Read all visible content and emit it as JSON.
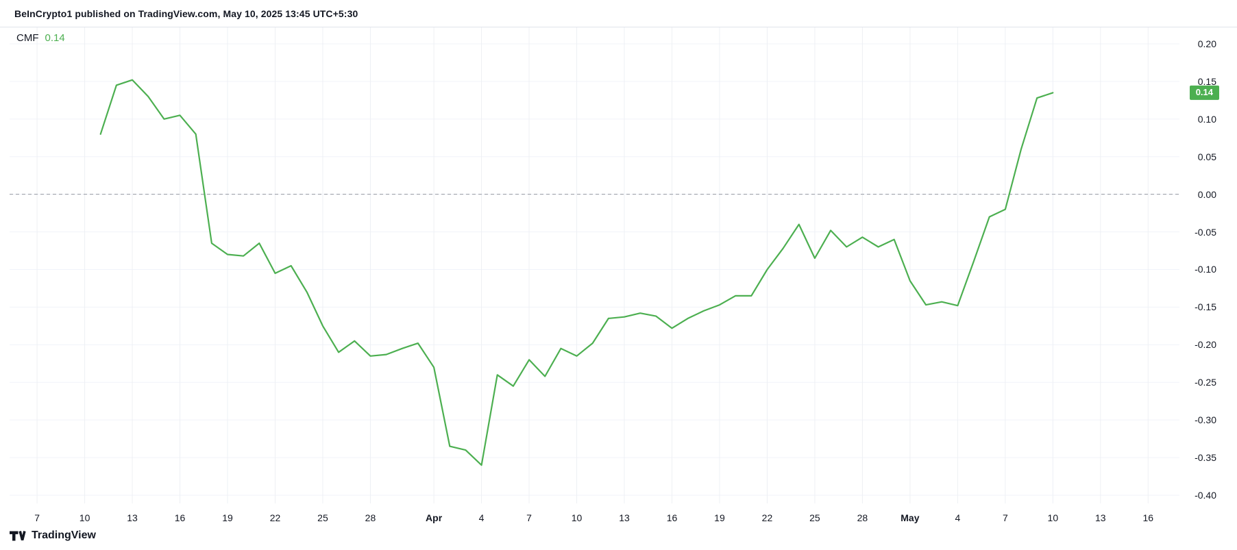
{
  "header": {
    "title": "BeInCrypto1 published on TradingView.com, May 10, 2025 13:45 UTC+5:30"
  },
  "legend": {
    "indicator": "CMF",
    "value": "0.14"
  },
  "price_scale": {
    "last_value_label": "0.14",
    "badge_color": "#4caf50"
  },
  "footer": {
    "brand": "TradingView"
  },
  "icons": {
    "brand_mark": "tradingview-logo"
  },
  "chart_data": {
    "type": "line",
    "title": "CMF (Chaikin Money Flow)",
    "legend_label": "CMF",
    "line_color": "#4caf50",
    "grid": true,
    "zero_line": 0.0,
    "zero_line_style": "dashed",
    "legend_position": "top-left",
    "ylim": [
      -0.42,
      0.225
    ],
    "y_ticks": [
      {
        "label": "0.20",
        "value": 0.2
      },
      {
        "label": "0.15",
        "value": 0.15
      },
      {
        "label": "0.10",
        "value": 0.1
      },
      {
        "label": "0.05",
        "value": 0.05
      },
      {
        "label": "0.00",
        "value": 0.0
      },
      {
        "label": "-0.05",
        "value": -0.05
      },
      {
        "label": "-0.10",
        "value": -0.1
      },
      {
        "label": "-0.15",
        "value": -0.15
      },
      {
        "label": "-0.20",
        "value": -0.2
      },
      {
        "label": "-0.25",
        "value": -0.25
      },
      {
        "label": "-0.30",
        "value": -0.3
      },
      {
        "label": "-0.35",
        "value": -0.35
      },
      {
        "label": "-0.40",
        "value": -0.4
      }
    ],
    "x_ticks": [
      {
        "label": "7",
        "day": 0,
        "bold": false
      },
      {
        "label": "10",
        "day": 3,
        "bold": false
      },
      {
        "label": "13",
        "day": 6,
        "bold": false
      },
      {
        "label": "16",
        "day": 9,
        "bold": false
      },
      {
        "label": "19",
        "day": 12,
        "bold": false
      },
      {
        "label": "22",
        "day": 15,
        "bold": false
      },
      {
        "label": "25",
        "day": 18,
        "bold": false
      },
      {
        "label": "28",
        "day": 21,
        "bold": false
      },
      {
        "label": "Apr",
        "day": 25,
        "bold": true
      },
      {
        "label": "4",
        "day": 28,
        "bold": false
      },
      {
        "label": "7",
        "day": 31,
        "bold": false
      },
      {
        "label": "10",
        "day": 34,
        "bold": false
      },
      {
        "label": "13",
        "day": 37,
        "bold": false
      },
      {
        "label": "16",
        "day": 40,
        "bold": false
      },
      {
        "label": "19",
        "day": 43,
        "bold": false
      },
      {
        "label": "22",
        "day": 46,
        "bold": false
      },
      {
        "label": "25",
        "day": 49,
        "bold": false
      },
      {
        "label": "28",
        "day": 52,
        "bold": false
      },
      {
        "label": "May",
        "day": 55,
        "bold": true
      },
      {
        "label": "4",
        "day": 58,
        "bold": false
      },
      {
        "label": "7",
        "day": 61,
        "bold": false
      },
      {
        "label": "10",
        "day": 64,
        "bold": false
      },
      {
        "label": "13",
        "day": 67,
        "bold": false
      },
      {
        "label": "16",
        "day": 70,
        "bold": false
      }
    ],
    "series": [
      {
        "name": "CMF",
        "start_day": 4,
        "day_step": 1,
        "values": [
          0.08,
          0.145,
          0.152,
          0.13,
          0.1,
          0.105,
          0.08,
          -0.065,
          -0.08,
          -0.082,
          -0.065,
          -0.105,
          -0.095,
          -0.13,
          -0.175,
          -0.21,
          -0.195,
          -0.215,
          -0.213,
          -0.205,
          -0.198,
          -0.23,
          -0.335,
          -0.34,
          -0.36,
          -0.24,
          -0.255,
          -0.22,
          -0.242,
          -0.205,
          -0.215,
          -0.198,
          -0.165,
          -0.163,
          -0.158,
          -0.162,
          -0.178,
          -0.165,
          -0.155,
          -0.147,
          -0.135,
          -0.135,
          -0.1,
          -0.072,
          -0.04,
          -0.085,
          -0.048,
          -0.07,
          -0.057,
          -0.07,
          -0.06,
          -0.115,
          -0.147,
          -0.143,
          -0.148,
          -0.09,
          -0.03,
          -0.02,
          0.06,
          0.128,
          0.135
        ]
      }
    ],
    "last_value": 0.14
  }
}
